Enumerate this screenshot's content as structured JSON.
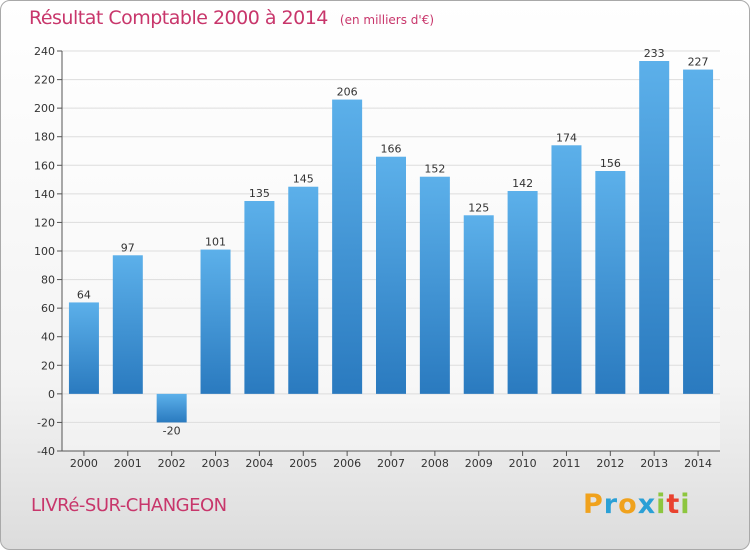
{
  "header": {
    "title": "Résultat Comptable 2000 à 2014",
    "subtitle": "(en milliers d'€)"
  },
  "footer": {
    "town": "LIVRé-SUR-CHANGEON",
    "logo": {
      "letters": [
        "P",
        "r",
        "o",
        "x",
        "i",
        "t",
        "i"
      ],
      "colors": [
        "#f0a21d",
        "#2aa0d6",
        "#f0a21d",
        "#2aa0d6",
        "#8dc63f",
        "#e9422f",
        "#8dc63f"
      ]
    }
  },
  "colors": {
    "bar_top": "#5cb0ea",
    "bar_bottom": "#2a7abf",
    "grid": "#dddddd",
    "text": "#333333"
  },
  "chart_data": {
    "type": "bar",
    "title": "Résultat Comptable 2000 à 2014",
    "xlabel": "",
    "ylabel": "",
    "categories": [
      "2000",
      "2001",
      "2002",
      "2003",
      "2004",
      "2005",
      "2006",
      "2007",
      "2008",
      "2009",
      "2010",
      "2011",
      "2012",
      "2013",
      "2014"
    ],
    "values": [
      64,
      97,
      -20,
      101,
      135,
      145,
      206,
      166,
      152,
      125,
      142,
      174,
      156,
      233,
      227
    ],
    "ylim": [
      -40,
      240
    ],
    "yticks": [
      -40,
      -20,
      0,
      20,
      40,
      60,
      80,
      100,
      120,
      140,
      160,
      180,
      200,
      220,
      240
    ],
    "grid": true
  }
}
